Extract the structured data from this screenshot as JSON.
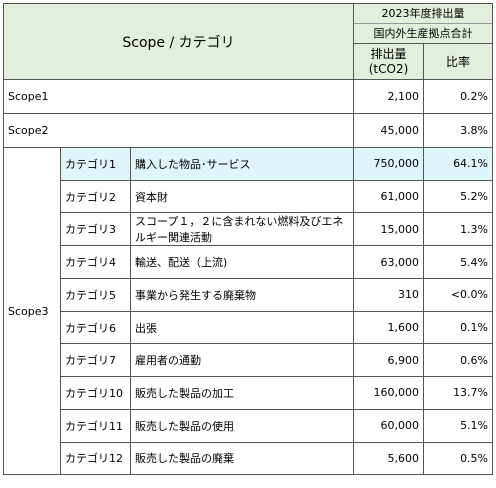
{
  "header": {
    "title": "Scope / カテゴリ",
    "period": "2023年度排出量",
    "basis": "国内外生産拠点合計",
    "emissions_label": "排出量",
    "unit": "(tCO2)",
    "ratio_label": "比率"
  },
  "rows": [
    {
      "scope": "Scope1",
      "emissions": "2,100",
      "ratio": "0.2%"
    },
    {
      "scope": "Scope2",
      "emissions": "45,000",
      "ratio": "3.8%"
    }
  ],
  "scope3": {
    "scope": "Scope3",
    "categories": [
      {
        "category": "カテゴリ1",
        "description": "購入した物品･サービス",
        "emissions": "750,000",
        "ratio": "64.1%"
      },
      {
        "category": "カテゴリ2",
        "description": "資本財",
        "emissions": "61,000",
        "ratio": "5.2%"
      },
      {
        "category": "カテゴリ3",
        "description": "スコープ１，２に含まれない燃料及びエネルギー関連活動",
        "emissions": "15,000",
        "ratio": "1.3%"
      },
      {
        "category": "カテゴリ4",
        "description": "輸送、配送（上流)",
        "emissions": "63,000",
        "ratio": "5.4%"
      },
      {
        "category": "カテゴリ5",
        "description": "事業から発生する廃棄物",
        "emissions": "310",
        "ratio": "<0.0%"
      },
      {
        "category": "カテゴリ6",
        "description": "出張",
        "emissions": "1,600",
        "ratio": "0.1%"
      },
      {
        "category": "カテゴリ7",
        "description": "雇用者の通勤",
        "emissions": "6,900",
        "ratio": "0.6%"
      },
      {
        "category": "カテゴリ10",
        "description": "販売した製品の加工",
        "emissions": "160,000",
        "ratio": "13.7%"
      },
      {
        "category": "カテゴリ11",
        "description": "販売した製品の使用",
        "emissions": "60,000",
        "ratio": "5.1%"
      },
      {
        "category": "カテゴリ12",
        "description": "販売した製品の廃棄",
        "emissions": "5,600",
        "ratio": "0.5%"
      }
    ]
  }
}
